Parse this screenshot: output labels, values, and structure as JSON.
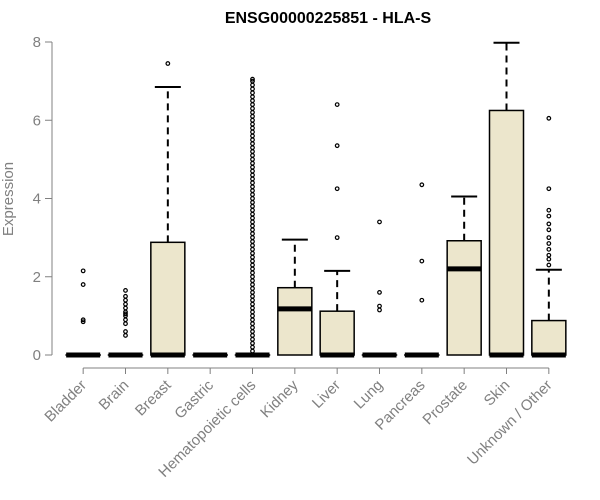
{
  "chart_data": {
    "type": "boxplot",
    "title": "ENSG00000225851 - HLA-S",
    "xlabel": "",
    "ylabel": "Expression",
    "ylim": [
      0,
      8
    ],
    "yticks": [
      0,
      2,
      4,
      6,
      8
    ],
    "grid": false,
    "box_color": "#ece6cc",
    "categories": [
      "Bladder",
      "Brain",
      "Breast",
      "Gastric",
      "Hematopoietic cells",
      "Kidney",
      "Liver",
      "Lung",
      "Pancreas",
      "Prostate",
      "Skin",
      "Unknown / Other"
    ],
    "boxes": [
      {
        "category": "Bladder",
        "q1": 0,
        "median": 0,
        "q3": 0,
        "whisker_low": 0,
        "whisker_high": 0,
        "outliers": [
          0.85,
          0.9,
          1.8,
          2.15
        ]
      },
      {
        "category": "Brain",
        "q1": 0,
        "median": 0,
        "q3": 0,
        "whisker_low": 0,
        "whisker_high": 0,
        "outliers": [
          0.5,
          0.6,
          0.8,
          0.9,
          1.0,
          1.05,
          1.1,
          1.2,
          1.3,
          1.4,
          1.5,
          1.65
        ]
      },
      {
        "category": "Breast",
        "q1": 0,
        "median": 0,
        "q3": 2.88,
        "whisker_low": 0,
        "whisker_high": 6.85,
        "outliers": [
          7.45
        ]
      },
      {
        "category": "Gastric",
        "q1": 0,
        "median": 0,
        "q3": 0,
        "whisker_low": 0,
        "whisker_high": 0,
        "outliers": []
      },
      {
        "category": "Hematopoietic cells",
        "q1": 0,
        "median": 0,
        "q3": 0,
        "whisker_low": 0,
        "whisker_high": 0,
        "outliers": [
          0.1,
          0.2,
          0.3,
          0.4,
          0.5,
          0.6,
          0.7,
          0.8,
          0.9,
          1.0,
          1.1,
          1.2,
          1.3,
          1.4,
          1.5,
          1.6,
          1.7,
          1.8,
          1.9,
          2.0,
          2.1,
          2.2,
          2.3,
          2.4,
          2.5,
          2.6,
          2.7,
          2.8,
          2.9,
          3.0,
          3.1,
          3.2,
          3.3,
          3.4,
          3.5,
          3.6,
          3.7,
          3.8,
          3.9,
          4.0,
          4.1,
          4.2,
          4.3,
          4.4,
          4.5,
          4.6,
          4.7,
          4.8,
          4.9,
          5.0,
          5.1,
          5.2,
          5.3,
          5.4,
          5.5,
          5.6,
          5.7,
          5.8,
          5.9,
          6.0,
          6.1,
          6.2,
          6.3,
          6.4,
          6.5,
          6.6,
          6.7,
          6.8,
          6.9,
          7.0,
          7.05
        ]
      },
      {
        "category": "Kidney",
        "q1": 0,
        "median": 1.18,
        "q3": 1.72,
        "whisker_low": 0,
        "whisker_high": 2.95,
        "outliers": []
      },
      {
        "category": "Liver",
        "q1": 0,
        "median": 0,
        "q3": 1.12,
        "whisker_low": 0,
        "whisker_high": 2.15,
        "outliers": [
          3.0,
          4.25,
          5.35,
          6.4
        ]
      },
      {
        "category": "Lung",
        "q1": 0,
        "median": 0,
        "q3": 0,
        "whisker_low": 0,
        "whisker_high": 0,
        "outliers": [
          1.15,
          1.25,
          1.6,
          3.4
        ]
      },
      {
        "category": "Pancreas",
        "q1": 0,
        "median": 0,
        "q3": 0,
        "whisker_low": 0,
        "whisker_high": 0,
        "outliers": [
          1.4,
          2.4,
          4.35
        ]
      },
      {
        "category": "Prostate",
        "q1": 0,
        "median": 2.2,
        "q3": 2.92,
        "whisker_low": 0,
        "whisker_high": 4.05,
        "outliers": []
      },
      {
        "category": "Skin",
        "q1": 0,
        "median": 0,
        "q3": 6.25,
        "whisker_low": 0,
        "whisker_high": 7.98,
        "outliers": []
      },
      {
        "category": "Unknown / Other",
        "q1": 0,
        "median": 0,
        "q3": 0.88,
        "whisker_low": 0,
        "whisker_high": 2.18,
        "outliers": [
          2.3,
          2.45,
          2.55,
          2.7,
          2.85,
          3.0,
          3.2,
          3.35,
          3.55,
          3.7,
          4.25,
          6.05
        ]
      }
    ]
  }
}
